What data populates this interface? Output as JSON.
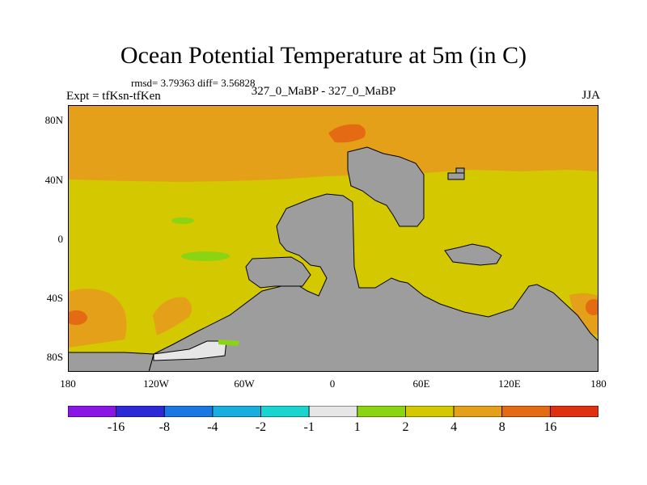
{
  "title": "Ocean Potential Temperature at 5m (in C)",
  "stats": "rmsd= 3.79363 diff= 3.56828",
  "left_label": "Expt = tfKsn-tfKen",
  "center_label": "327_0_MaBP - 327_0_MaBP",
  "season": "JJA",
  "lat_ticks": [
    "80N",
    "40N",
    "0",
    "40S",
    "80S"
  ],
  "lon_ticks": [
    "180",
    "120W",
    "60W",
    "0",
    "60E",
    "120E",
    "180"
  ],
  "colorbar": {
    "colors": [
      "#8a16e6",
      "#2c2ad8",
      "#1a78e4",
      "#18aee0",
      "#1ad4d0",
      "#e6e6e6",
      "#8ad414",
      "#d4c800",
      "#e4a018",
      "#e46a14",
      "#e03010"
    ],
    "labels": [
      "-16",
      "-8",
      "-4",
      "-2",
      "-1",
      "1",
      "2",
      "4",
      "8",
      "16"
    ]
  },
  "map_colors": {
    "land": "#9d9d9d",
    "band_2_4": "#d4c800",
    "band_4_8": "#e4a018",
    "band_8_16": "#e46a14",
    "band_1_2": "#8ad414",
    "band_neg1_1": "#e6e6e6"
  }
}
